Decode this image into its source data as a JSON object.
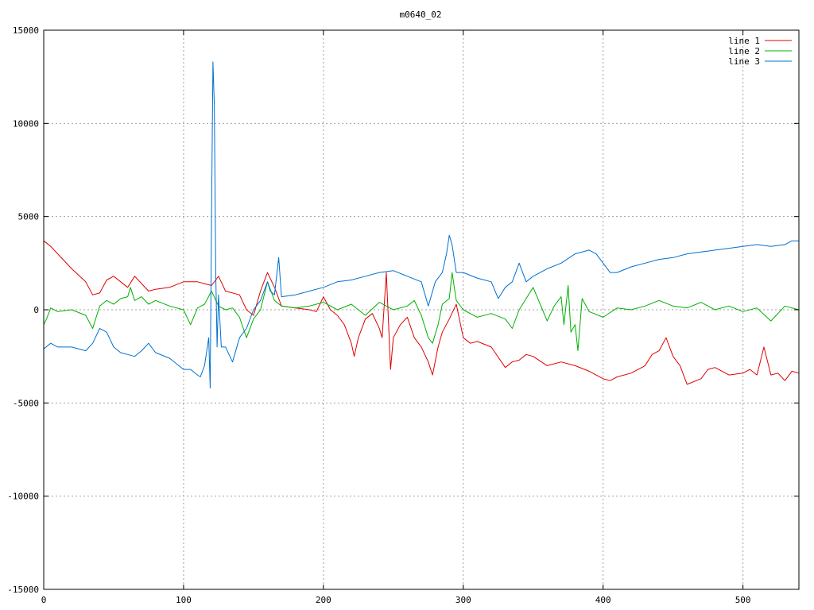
{
  "chart_data": {
    "type": "line",
    "title": "m0640_02",
    "xlabel": "",
    "ylabel": "",
    "xlim": [
      0,
      540
    ],
    "ylim": [
      -15000,
      15000
    ],
    "grid": true,
    "legend_position": "top-right",
    "x_ticks": [
      0,
      100,
      200,
      300,
      400,
      500
    ],
    "y_ticks": [
      -15000,
      -10000,
      -5000,
      0,
      5000,
      10000,
      15000
    ],
    "x_tick_labels": [
      "0",
      "100",
      "200",
      "300",
      "400",
      "500"
    ],
    "y_tick_labels": [
      "-15000",
      "-10000",
      "-5000",
      "0",
      "5000",
      "10000",
      "15000"
    ],
    "series": [
      {
        "name": "line 1",
        "color": "#e00000",
        "x": [
          0,
          5,
          10,
          20,
          30,
          35,
          40,
          45,
          50,
          55,
          60,
          65,
          70,
          75,
          80,
          90,
          100,
          110,
          115,
          120,
          125,
          130,
          140,
          145,
          150,
          155,
          160,
          165,
          170,
          180,
          190,
          195,
          200,
          205,
          210,
          215,
          220,
          222,
          225,
          230,
          235,
          240,
          242,
          245,
          248,
          250,
          255,
          260,
          265,
          270,
          275,
          278,
          282,
          285,
          290,
          295,
          300,
          305,
          310,
          320,
          330,
          335,
          340,
          345,
          350,
          360,
          370,
          380,
          390,
          400,
          405,
          410,
          420,
          430,
          435,
          440,
          445,
          450,
          455,
          460,
          470,
          475,
          480,
          490,
          500,
          505,
          510,
          515,
          520,
          525,
          530,
          535,
          540
        ],
        "y": [
          3700,
          3400,
          3000,
          2200,
          1500,
          800,
          900,
          1600,
          1800,
          1500,
          1200,
          1800,
          1400,
          1000,
          1100,
          1200,
          1500,
          1500,
          1400,
          1300,
          1800,
          1000,
          800,
          0,
          -300,
          1000,
          2000,
          1200,
          200,
          100,
          0,
          -100,
          700,
          0,
          -300,
          -800,
          -1800,
          -2500,
          -1500,
          -500,
          -200,
          -1000,
          -1500,
          2000,
          -3200,
          -1500,
          -800,
          -400,
          -1500,
          -2000,
          -2800,
          -3500,
          -2000,
          -1200,
          -500,
          300,
          -1500,
          -1800,
          -1700,
          -2000,
          -3100,
          -2800,
          -2700,
          -2400,
          -2500,
          -3000,
          -2800,
          -3000,
          -3300,
          -3700,
          -3800,
          -3600,
          -3400,
          -3000,
          -2400,
          -2200,
          -1500,
          -2500,
          -3000,
          -4000,
          -3700,
          -3200,
          -3100,
          -3500,
          -3400,
          -3200,
          -3500,
          -2000,
          -3500,
          -3400,
          -3800,
          -3300,
          -3400
        ]
      },
      {
        "name": "line 2",
        "color": "#00b000",
        "x": [
          0,
          2,
          5,
          10,
          20,
          30,
          35,
          40,
          45,
          50,
          55,
          60,
          62,
          65,
          70,
          75,
          80,
          90,
          100,
          105,
          110,
          115,
          120,
          125,
          130,
          135,
          140,
          145,
          150,
          155,
          160,
          165,
          170,
          180,
          190,
          200,
          210,
          220,
          230,
          240,
          250,
          260,
          265,
          270,
          275,
          278,
          282,
          285,
          290,
          292,
          295,
          300,
          310,
          320,
          330,
          335,
          340,
          345,
          350,
          355,
          360,
          365,
          370,
          372,
          375,
          377,
          380,
          382,
          385,
          390,
          400,
          410,
          420,
          430,
          440,
          450,
          460,
          470,
          480,
          490,
          500,
          510,
          520,
          530,
          540
        ],
        "y": [
          -800,
          -500,
          100,
          -100,
          0,
          -300,
          -1000,
          200,
          500,
          300,
          600,
          700,
          1200,
          500,
          700,
          300,
          500,
          200,
          0,
          -800,
          100,
          300,
          1000,
          200,
          0,
          100,
          -400,
          -1500,
          -500,
          0,
          1500,
          500,
          200,
          100,
          200,
          400,
          0,
          300,
          -300,
          400,
          0,
          200,
          500,
          -300,
          -1500,
          -1800,
          -800,
          300,
          600,
          2000,
          500,
          0,
          -400,
          -200,
          -500,
          -1000,
          0,
          600,
          1200,
          300,
          -600,
          200,
          700,
          -800,
          1300,
          -1200,
          -800,
          -2200,
          600,
          -100,
          -400,
          100,
          0,
          200,
          500,
          200,
          100,
          400,
          0,
          200,
          -100,
          100,
          -600,
          200,
          0
        ]
      },
      {
        "name": "line 3",
        "color": "#0070d0",
        "x": [
          0,
          5,
          10,
          20,
          30,
          35,
          40,
          45,
          50,
          55,
          60,
          65,
          70,
          75,
          80,
          90,
          100,
          105,
          110,
          112,
          115,
          118,
          119,
          120,
          121,
          122,
          123,
          124,
          125,
          127,
          130,
          135,
          140,
          145,
          150,
          155,
          160,
          162,
          165,
          168,
          170,
          180,
          190,
          200,
          210,
          220,
          230,
          240,
          250,
          260,
          270,
          275,
          280,
          285,
          288,
          290,
          292,
          295,
          300,
          310,
          320,
          325,
          330,
          335,
          340,
          345,
          350,
          360,
          370,
          380,
          390,
          395,
          400,
          405,
          410,
          420,
          430,
          440,
          450,
          460,
          470,
          480,
          490,
          500,
          510,
          520,
          530,
          535,
          540
        ],
        "y": [
          -2100,
          -1800,
          -2000,
          -2000,
          -2200,
          -1800,
          -1000,
          -1200,
          -2000,
          -2300,
          -2400,
          -2500,
          -2200,
          -1800,
          -2300,
          -2600,
          -3200,
          -3200,
          -3500,
          -3600,
          -3000,
          -1500,
          -4200,
          5000,
          13300,
          11000,
          2000,
          -2000,
          800,
          -2000,
          -2000,
          -2800,
          -1500,
          -1000,
          0,
          500,
          1500,
          1000,
          800,
          2800,
          700,
          800,
          1000,
          1200,
          1500,
          1600,
          1800,
          2000,
          2100,
          1800,
          1500,
          200,
          1500,
          2000,
          3000,
          4000,
          3500,
          2000,
          2000,
          1700,
          1500,
          600,
          1200,
          1500,
          2500,
          1500,
          1800,
          2200,
          2500,
          3000,
          3200,
          3000,
          2500,
          2000,
          2000,
          2300,
          2500,
          2700,
          2800,
          3000,
          3100,
          3200,
          3300,
          3400,
          3500,
          3400,
          3500,
          3700,
          3700
        ]
      }
    ]
  }
}
